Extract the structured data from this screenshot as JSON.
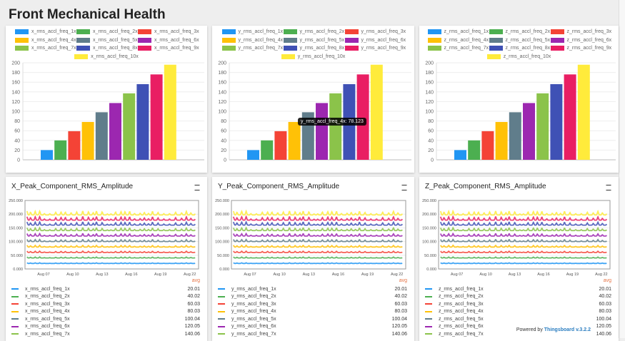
{
  "header": {
    "title": "Front Mechanical Health"
  },
  "colors": [
    "#2196f3",
    "#4caf50",
    "#f44336",
    "#ffc107",
    "#607d8b",
    "#9c27b0",
    "#8bc34a",
    "#3f51b5",
    "#e91e63",
    "#ffeb3b"
  ],
  "bar_panels": [
    {
      "prefix": "x",
      "series": [
        "x_rms_accl_freq_1x",
        "x_rms_accl_freq_2x",
        "x_rms_accl_freq_3x",
        "x_rms_accl_freq_4x",
        "x_rms_accl_freq_5x",
        "x_rms_accl_freq_6x",
        "x_rms_accl_freq_7x",
        "x_rms_accl_freq_8x",
        "x_rms_accl_freq_9x",
        "x_rms_accl_freq_10x"
      ]
    },
    {
      "prefix": "y",
      "series": [
        "y_rms_accl_freq_1x",
        "y_rms_accl_freq_2x",
        "y_rms_accl_freq_3x",
        "y_rms_accl_freq_4x",
        "y_rms_accl_freq_5x",
        "y_rms_accl_freq_6x",
        "y_rms_accl_freq_7x",
        "y_rms_accl_freq_8x",
        "y_rms_accl_freq_9x",
        "y_rms_accl_freq_10x"
      ],
      "tooltip": "y_rms_accl_freq_4x: 78.123"
    },
    {
      "prefix": "z",
      "series": [
        "z_rms_accl_freq_1x",
        "z_rms_accl_freq_2x",
        "z_rms_accl_freq_3x",
        "z_rms_accl_freq_4x",
        "z_rms_accl_freq_5x",
        "z_rms_accl_freq_6x",
        "z_rms_accl_freq_7x",
        "z_rms_accl_freq_8x",
        "z_rms_accl_freq_9x",
        "z_rms_accl_freq_10x"
      ]
    }
  ],
  "line_panels": [
    {
      "title": "X_Peak_Component_RMS_Amplitude",
      "legend": [
        "x_rms_accl_freq_1x",
        "x_rms_accl_freq_2x",
        "x_rms_accl_freq_3x",
        "x_rms_accl_freq_4x",
        "x_rms_accl_freq_5x",
        "x_rms_accl_freq_6x",
        "x_rms_accl_freq_7x"
      ]
    },
    {
      "title": "Y_Peak_Component_RMS_Amplitude",
      "legend": [
        "y_rms_accl_freq_1x",
        "y_rms_accl_freq_2x",
        "y_rms_accl_freq_3x",
        "y_rms_accl_freq_4x",
        "y_rms_accl_freq_5x",
        "y_rms_accl_freq_6x",
        "y_rms_accl_freq_7x"
      ]
    },
    {
      "title": "Z_Peak_Component_RMS_Amplitude",
      "legend": [
        "z_rms_accl_freq_1x",
        "z_rms_accl_freq_2x",
        "z_rms_accl_freq_3x",
        "z_rms_accl_freq_4x",
        "z_rms_accl_freq_5x",
        "z_rms_accl_freq_6x",
        "z_rms_accl_freq_7x"
      ]
    }
  ],
  "legend_avg_label": "avg",
  "avg_values": [
    "20.01",
    "40.02",
    "60.03",
    "80.03",
    "100.04",
    "120.05",
    "140.06"
  ],
  "footer": {
    "powered_by": "Powered by",
    "brand": "Thingsboard v.3.2.2"
  },
  "chart_data": [
    {
      "type": "bar",
      "values": [
        20,
        40,
        59,
        78,
        98,
        117,
        137,
        156,
        176,
        196
      ],
      "ylim": [
        0,
        200
      ],
      "yticks": [
        "0",
        "20",
        "40",
        "60",
        "80",
        "100",
        "120",
        "140",
        "160",
        "180",
        "200"
      ],
      "grid": true,
      "legend": "top"
    },
    {
      "type": "line",
      "title": "Peak_Component_RMS_Amplitude",
      "x_range": [
        "Aug 05",
        "Aug 23"
      ],
      "xticks": [
        "Aug 07",
        "Aug 10",
        "Aug 13",
        "Aug 16",
        "Aug 19",
        "Aug 22"
      ],
      "ylim": [
        0,
        250
      ],
      "yticks": [
        "0.000",
        "50.000",
        "100.000",
        "150.000",
        "200.000",
        "250.000"
      ],
      "series_base": [
        20,
        40,
        60,
        80,
        100,
        120,
        140,
        160,
        178,
        197
      ],
      "grid": true,
      "legend": "bottom"
    }
  ]
}
